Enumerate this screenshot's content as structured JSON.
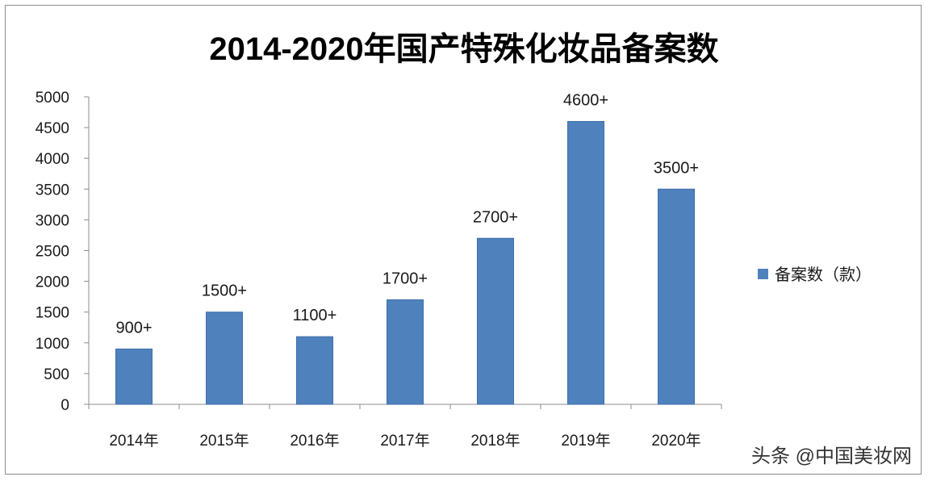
{
  "chart_data": {
    "type": "bar",
    "title": "2014-2020年国产特殊化妆品备案数",
    "categories": [
      "2014年",
      "2015年",
      "2016年",
      "2017年",
      "2018年",
      "2019年",
      "2020年"
    ],
    "series": [
      {
        "name": "备案数（款）",
        "values": [
          900,
          1500,
          1100,
          1700,
          2700,
          4600,
          3500
        ],
        "data_labels": [
          "900+",
          "1500+",
          "1100+",
          "1700+",
          "2700+",
          "4600+",
          "3500+"
        ],
        "color": "#4f81bd"
      }
    ],
    "ylim": [
      0,
      5000
    ],
    "yticks": [
      0,
      500,
      1000,
      1500,
      2000,
      2500,
      3000,
      3500,
      4000,
      4500,
      5000
    ],
    "grid": false,
    "legend": "right"
  },
  "watermark": "头条 @中国美妆网"
}
